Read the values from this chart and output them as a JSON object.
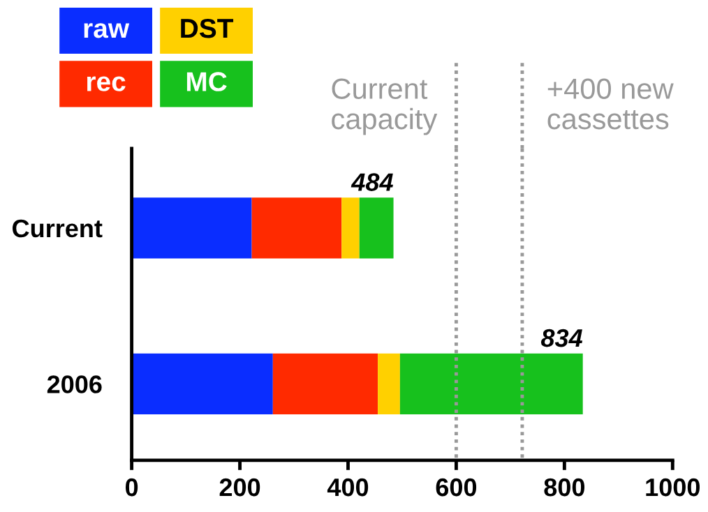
{
  "chart_data": {
    "type": "bar",
    "orientation": "horizontal",
    "stacked": true,
    "categories": [
      "Current",
      "2006"
    ],
    "series": [
      {
        "name": "raw",
        "color": "#0a2dff",
        "values": [
          222,
          261
        ]
      },
      {
        "name": "rec",
        "color": "#ff2a00",
        "values": [
          166,
          194
        ]
      },
      {
        "name": "DST",
        "color": "#ffd000",
        "values": [
          33,
          41
        ]
      },
      {
        "name": "MC",
        "color": "#17c11d",
        "values": [
          63,
          338
        ]
      }
    ],
    "totals": [
      "484",
      "834"
    ],
    "xlim": [
      0,
      1000
    ],
    "xticks": [
      0,
      200,
      400,
      600,
      800,
      1000
    ],
    "ref_lines": [
      {
        "axis": "x",
        "value": 600,
        "label": "Current capacity",
        "color": "#999999",
        "line_style": "dotted"
      },
      {
        "axis": "x",
        "value": 722,
        "label": "+400 new cassettes",
        "color": "#999999",
        "line_style": "dotted"
      }
    ],
    "legend": "top left",
    "grid": false
  }
}
